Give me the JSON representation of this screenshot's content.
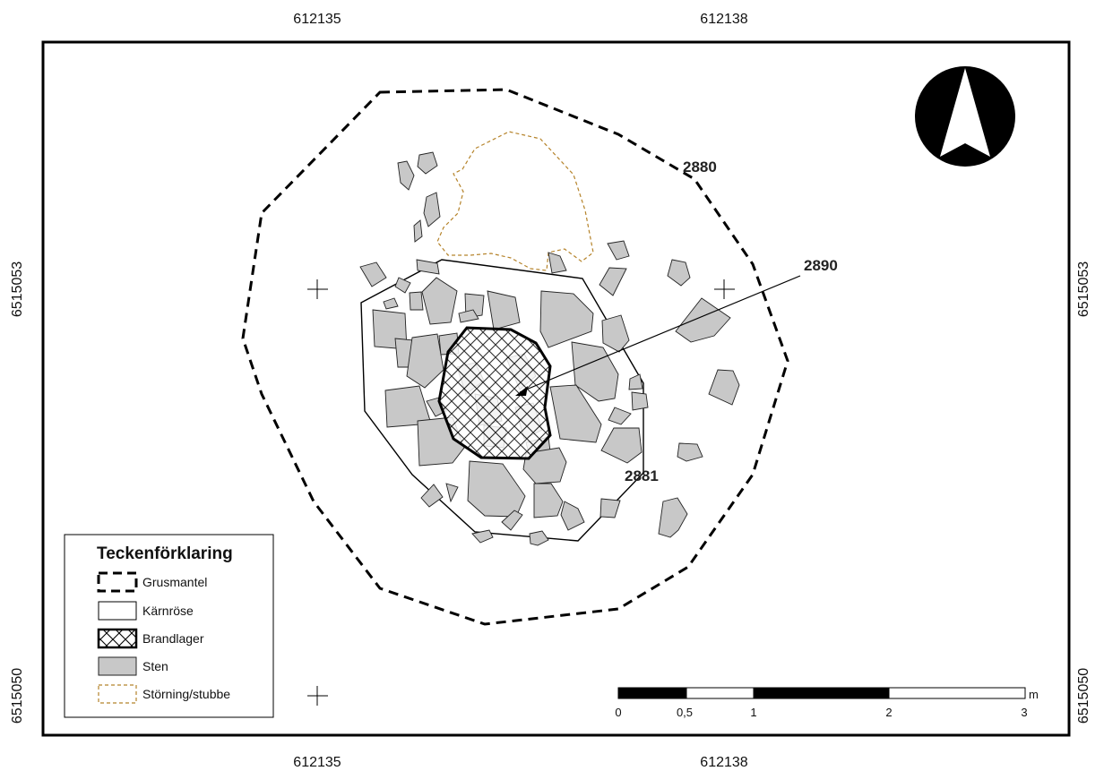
{
  "map": {
    "coords": {
      "x_left": "612135",
      "x_right": "612138",
      "y_upper": "6515053",
      "y_lower": "6515050"
    },
    "features": {
      "grusmantel": "2880",
      "brandlager": "2890",
      "karnrose": "2881"
    },
    "legend": {
      "title": "Teckenförklaring",
      "items": [
        {
          "label": "Grusmantel",
          "symbol": "dashed-outline"
        },
        {
          "label": "Kärnröse",
          "symbol": "thin-outline"
        },
        {
          "label": "Brandlager",
          "symbol": "crosshatch"
        },
        {
          "label": "Sten",
          "symbol": "grey-fill"
        },
        {
          "label": "Störning/stubbe",
          "symbol": "brown-dashed-outline"
        }
      ]
    },
    "scalebar": {
      "labels": [
        "0",
        "0,5",
        "1",
        "2",
        "3"
      ],
      "unit": "m"
    },
    "north_arrow": "north-arrow-icon",
    "colors": {
      "stone_fill": "#c8c8c8",
      "disturbance": "#b5832a",
      "ink": "#000000"
    }
  }
}
